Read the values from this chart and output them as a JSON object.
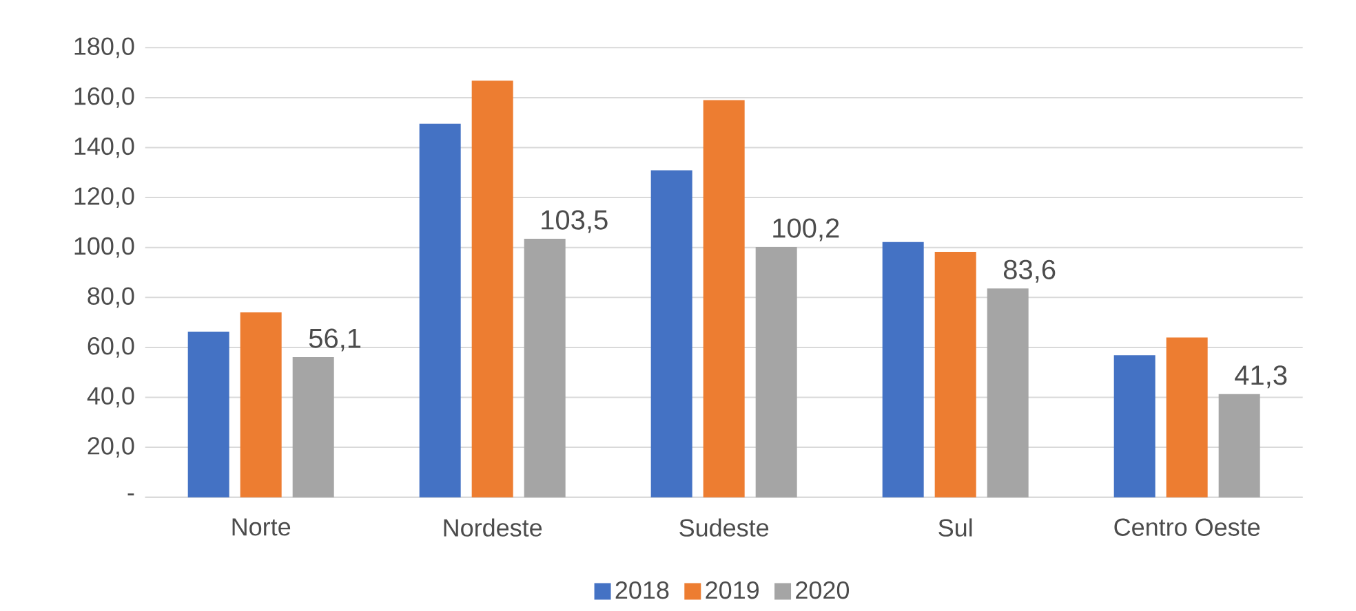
{
  "chart_data": {
    "type": "bar",
    "categories": [
      "Norte",
      "Nordeste",
      "Sudeste",
      "Sul",
      "Centro Oeste"
    ],
    "series": [
      {
        "name": "2018",
        "color": "#4472c4",
        "values": [
          66.3,
          149.6,
          130.9,
          102.2,
          56.9
        ]
      },
      {
        "name": "2019",
        "color": "#ed7d31",
        "values": [
          74.0,
          166.8,
          159.0,
          98.3,
          64.0
        ]
      },
      {
        "name": "2020",
        "color": "#a5a5a5",
        "values": [
          56.1,
          103.5,
          100.2,
          83.6,
          41.3
        ],
        "value_labels": [
          "56,1",
          "103,5",
          "100,2",
          "83,6",
          "41,3"
        ]
      }
    ],
    "ylim": [
      0,
      180
    ],
    "yticks": [
      {
        "value": 0,
        "label": "-"
      },
      {
        "value": 20,
        "label": "20,0"
      },
      {
        "value": 40,
        "label": "40,0"
      },
      {
        "value": 60,
        "label": "60,0"
      },
      {
        "value": 80,
        "label": "80,0"
      },
      {
        "value": 100,
        "label": "100,0"
      },
      {
        "value": 120,
        "label": "120,0"
      },
      {
        "value": 140,
        "label": "140,0"
      },
      {
        "value": 160,
        "label": "160,0"
      },
      {
        "value": 180,
        "label": "180,0"
      }
    ],
    "grid": "y",
    "legend": "bottom"
  }
}
